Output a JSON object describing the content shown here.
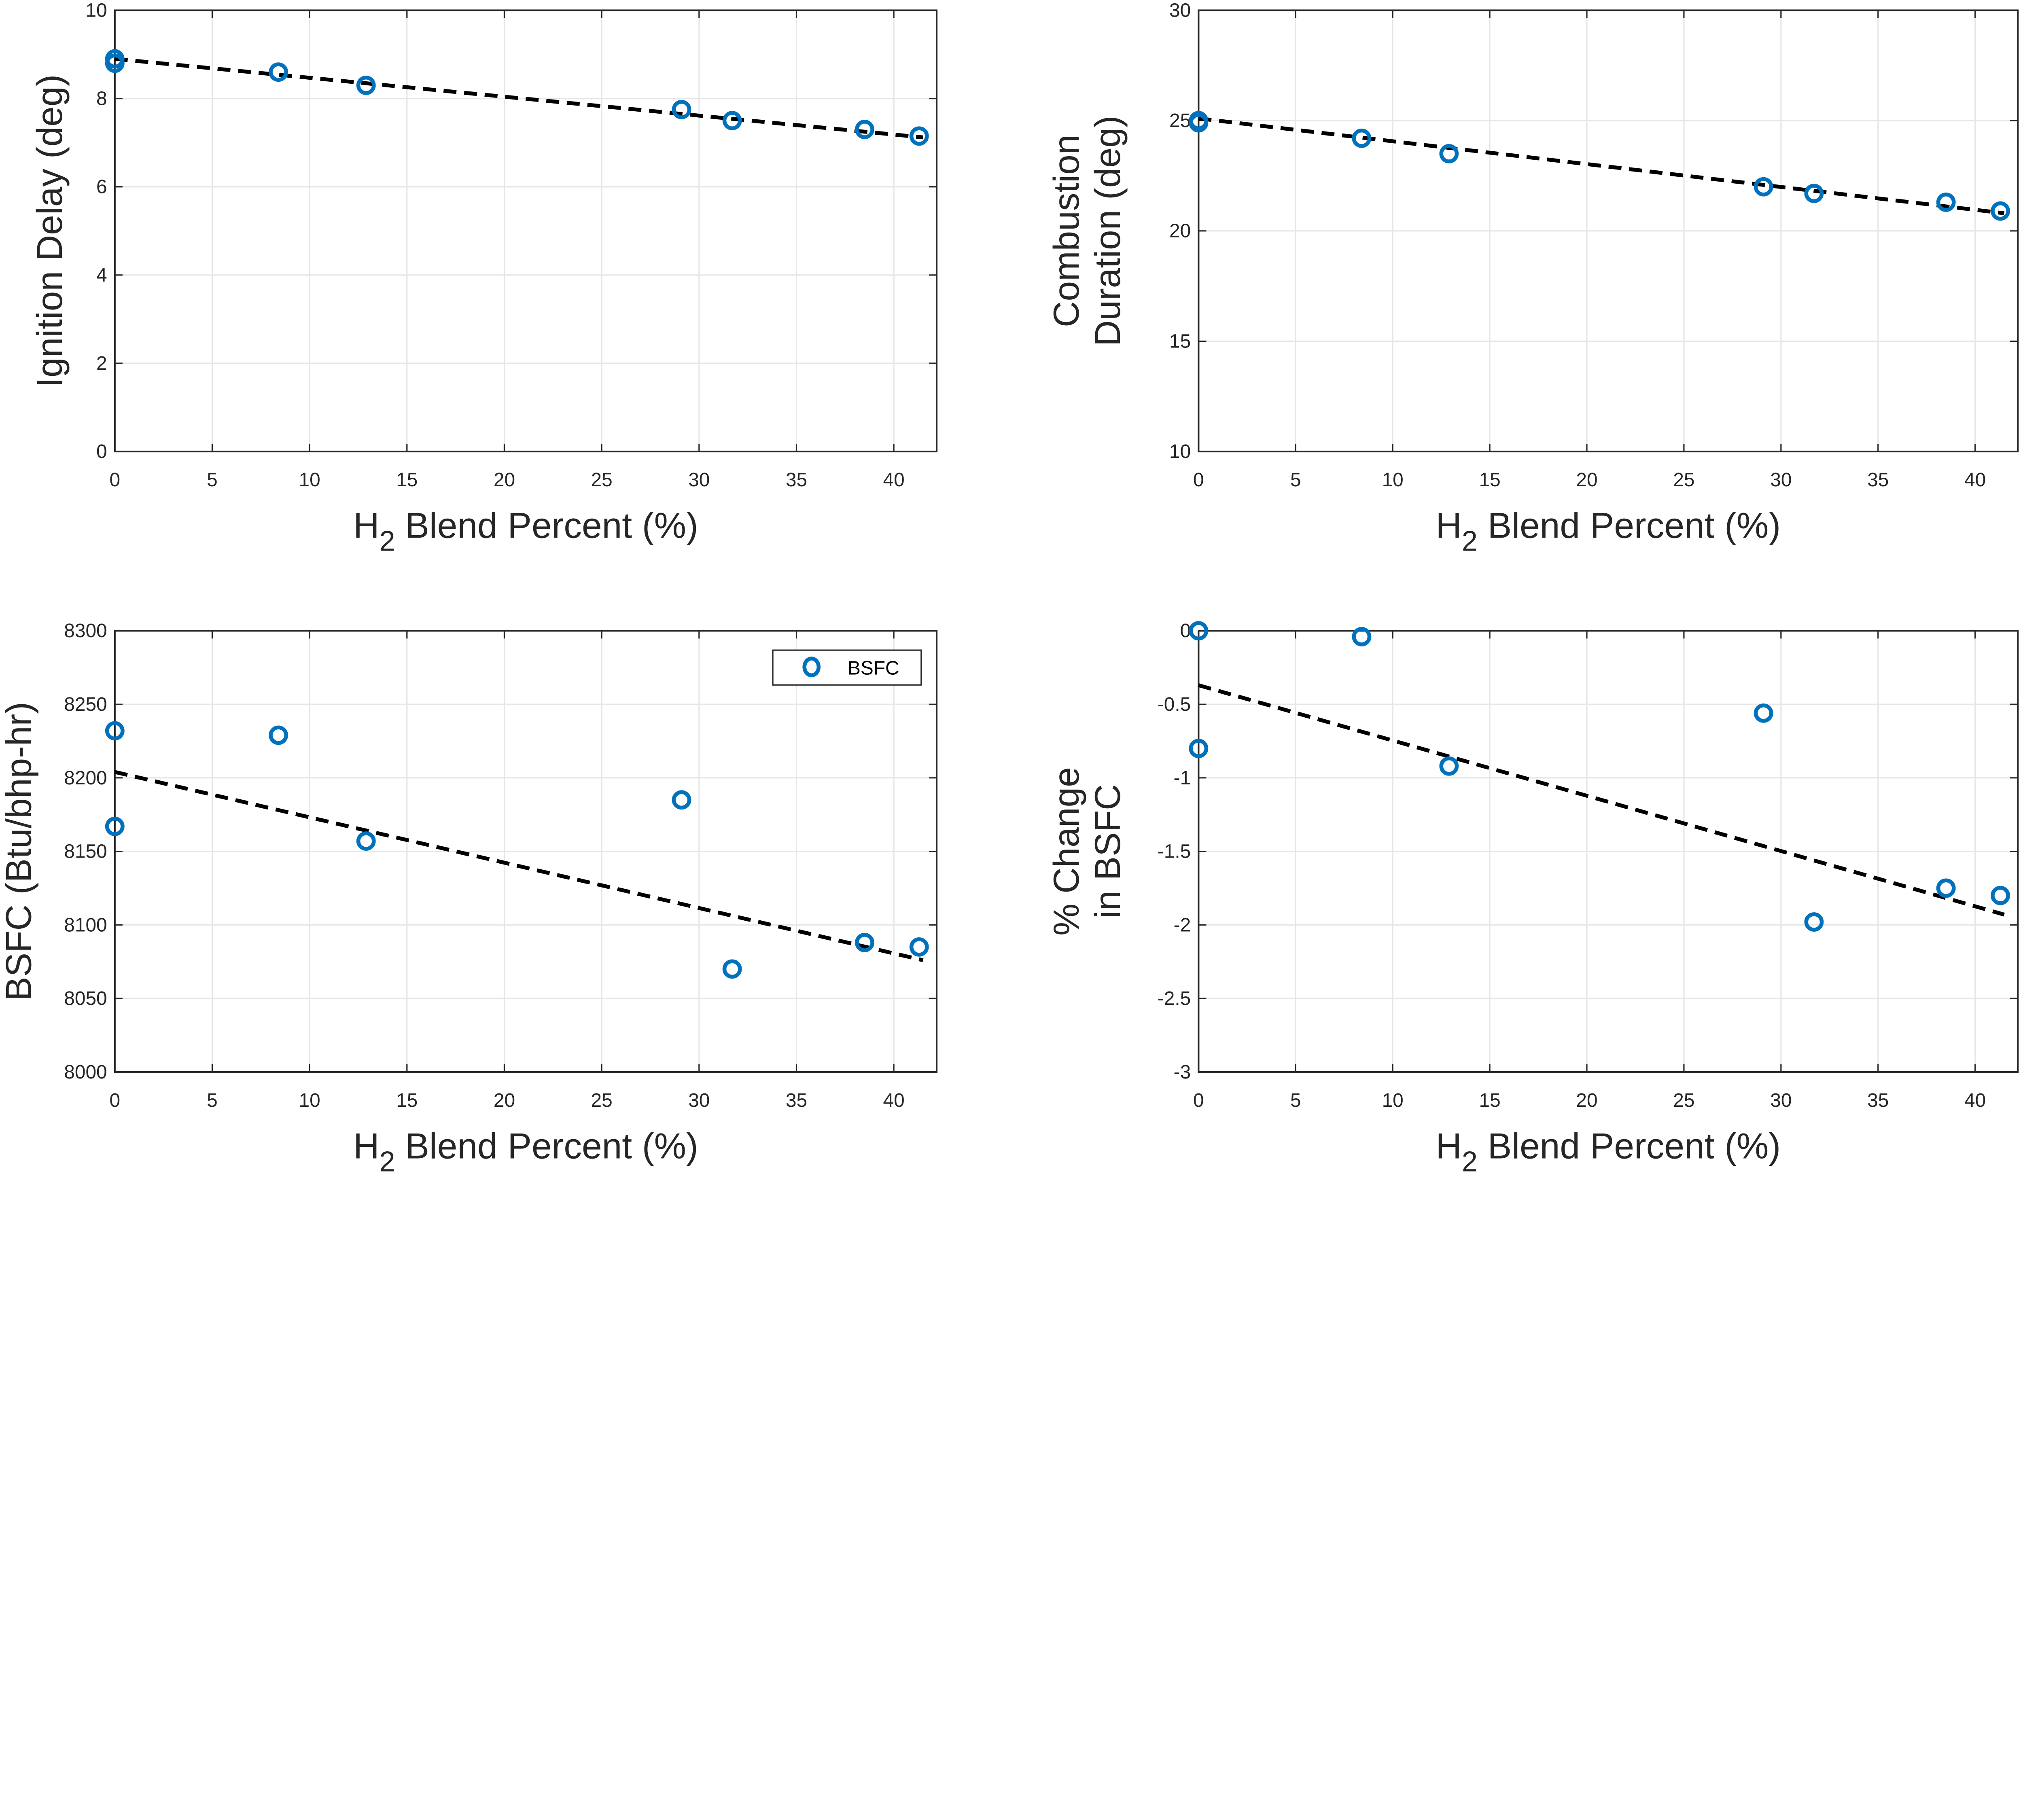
{
  "colors": {
    "marker": "#0072BD",
    "trend": "#000000",
    "grid": "#e6e6e6",
    "axis": "#262626"
  },
  "chart_data": [
    {
      "type": "scatter",
      "xlabel_main": "H",
      "xlabel_sub": "2",
      "xlabel_rest": " Blend Percent (%)",
      "ylabel": [
        "Ignition Delay (deg)"
      ],
      "xlim": [
        0,
        42.2
      ],
      "ylim": [
        0,
        10
      ],
      "xticks": [
        0,
        5,
        10,
        15,
        20,
        25,
        30,
        35,
        40
      ],
      "yticks": [
        0,
        2,
        4,
        6,
        8,
        10
      ],
      "grid": true,
      "x": [
        0,
        0,
        8.4,
        12.9,
        29.1,
        31.7,
        38.5,
        41.3
      ],
      "y": [
        8.9,
        8.8,
        8.6,
        8.3,
        7.75,
        7.5,
        7.3,
        7.15
      ],
      "trend": {
        "x": [
          0,
          41.5
        ],
        "y": [
          8.9,
          7.12
        ]
      }
    },
    {
      "type": "scatter",
      "xlabel_main": "H",
      "xlabel_sub": "2",
      "xlabel_rest": " Blend Percent (%)",
      "ylabel": [
        "Combustion",
        "Duration (deg)"
      ],
      "xlim": [
        0,
        42.2
      ],
      "ylim": [
        10,
        30
      ],
      "xticks": [
        0,
        5,
        10,
        15,
        20,
        25,
        30,
        35,
        40
      ],
      "yticks": [
        10,
        15,
        20,
        25,
        30
      ],
      "grid": true,
      "x": [
        0,
        0,
        8.4,
        12.9,
        29.1,
        31.7,
        38.5,
        41.3
      ],
      "y": [
        25.0,
        24.9,
        24.2,
        23.5,
        22.0,
        21.7,
        21.3,
        20.9
      ],
      "trend": {
        "x": [
          0,
          41.5
        ],
        "y": [
          25.1,
          20.8
        ]
      }
    },
    {
      "type": "scatter",
      "xlabel_main": "H",
      "xlabel_sub": "2",
      "xlabel_rest": " Blend Percent (%)",
      "ylabel": [
        "BSFC (Btu/bhp-hr)"
      ],
      "xlim": [
        0,
        42.2
      ],
      "ylim": [
        8000,
        8300
      ],
      "xticks": [
        0,
        5,
        10,
        15,
        20,
        25,
        30,
        35,
        40
      ],
      "yticks": [
        8000,
        8050,
        8100,
        8150,
        8200,
        8250,
        8300
      ],
      "grid": true,
      "legend": {
        "entries": [
          "BSFC"
        ],
        "placement": "top-right"
      },
      "x": [
        0,
        0,
        8.4,
        12.9,
        29.1,
        31.7,
        38.5,
        41.3
      ],
      "y": [
        8232,
        8167,
        8229,
        8157,
        8185,
        8070,
        8088,
        8085
      ],
      "trend": {
        "x": [
          0,
          41.5
        ],
        "y": [
          8204,
          8076
        ]
      }
    },
    {
      "type": "scatter",
      "xlabel_main": "H",
      "xlabel_sub": "2",
      "xlabel_rest": " Blend Percent (%)",
      "ylabel": [
        "% Change",
        "in BSFC"
      ],
      "xlim": [
        0,
        42.2
      ],
      "ylim": [
        -3,
        0
      ],
      "xticks": [
        0,
        5,
        10,
        15,
        20,
        25,
        30,
        35,
        40
      ],
      "yticks": [
        -3,
        -2.5,
        -2,
        -1.5,
        -1,
        -0.5,
        0
      ],
      "grid": true,
      "x": [
        0,
        0,
        8.4,
        12.9,
        29.1,
        31.7,
        38.5,
        41.3
      ],
      "y": [
        0,
        -0.8,
        -0.04,
        -0.92,
        -0.56,
        -1.98,
        -1.75,
        -1.8
      ],
      "trend": {
        "x": [
          0,
          41.5
        ],
        "y": [
          -0.37,
          -1.93
        ]
      }
    }
  ]
}
